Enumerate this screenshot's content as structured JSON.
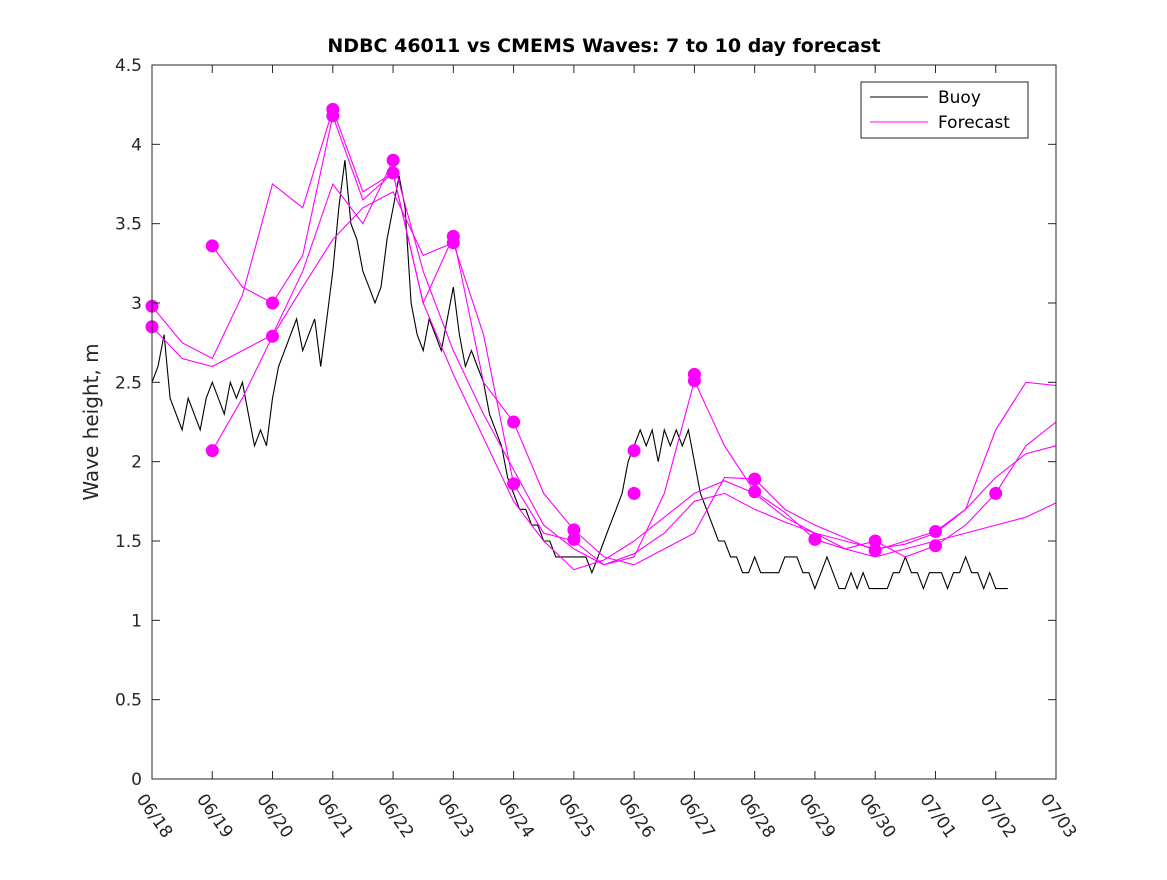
{
  "chart_data": {
    "type": "line",
    "title": "NDBC 46011 vs CMEMS Waves: 7 to 10 day forecast",
    "xlabel": "",
    "ylabel": "Wave height, m",
    "xlim": [
      0,
      15
    ],
    "ylim": [
      0,
      4.5
    ],
    "x_unit": "days since 06/18",
    "x_tick_values": [
      0,
      1,
      2,
      3,
      4,
      5,
      6,
      7,
      8,
      9,
      10,
      11,
      12,
      13,
      14,
      15
    ],
    "x_tick_labels": [
      "06/18",
      "06/19",
      "06/20",
      "06/21",
      "06/22",
      "06/23",
      "06/24",
      "06/25",
      "06/26",
      "06/27",
      "06/28",
      "06/29",
      "06/30",
      "07/01",
      "07/02",
      "07/03"
    ],
    "y_tick_values": [
      0,
      0.5,
      1,
      1.5,
      2,
      2.5,
      3,
      3.5,
      4,
      4.5
    ],
    "y_tick_labels": [
      "0",
      "0.5",
      "1",
      "1.5",
      "2",
      "2.5",
      "3",
      "3.5",
      "4",
      "4.5"
    ],
    "grid": false,
    "legend_position": "top-right",
    "legend": [
      {
        "label": "Buoy",
        "color": "#000000"
      },
      {
        "label": "Forecast",
        "color": "#ff00ff"
      }
    ],
    "colors": {
      "buoy": "#000000",
      "forecast": "#ff00ff"
    },
    "buoy": {
      "name": "Buoy",
      "x": [
        0,
        0.1,
        0.2,
        0.3,
        0.4,
        0.5,
        0.6,
        0.7,
        0.8,
        0.9,
        1.0,
        1.1,
        1.2,
        1.3,
        1.4,
        1.5,
        1.6,
        1.7,
        1.8,
        1.9,
        2.0,
        2.1,
        2.2,
        2.3,
        2.4,
        2.5,
        2.6,
        2.7,
        2.8,
        2.9,
        3.0,
        3.1,
        3.2,
        3.3,
        3.4,
        3.5,
        3.6,
        3.7,
        3.8,
        3.9,
        4.0,
        4.1,
        4.2,
        4.3,
        4.4,
        4.5,
        4.6,
        4.7,
        4.8,
        4.9,
        5.0,
        5.1,
        5.2,
        5.3,
        5.4,
        5.5,
        5.6,
        5.7,
        5.8,
        5.9,
        6.0,
        6.1,
        6.2,
        6.3,
        6.4,
        6.5,
        6.6,
        6.7,
        6.8,
        6.9,
        7.0,
        7.1,
        7.2,
        7.3,
        7.4,
        7.5,
        7.6,
        7.7,
        7.8,
        7.9,
        8.0,
        8.1,
        8.2,
        8.3,
        8.4,
        8.5,
        8.6,
        8.7,
        8.8,
        8.9,
        9.0,
        9.1,
        9.2,
        9.3,
        9.4,
        9.5,
        9.6,
        9.7,
        9.8,
        9.9,
        10.0,
        10.1,
        10.2,
        10.3,
        10.4,
        10.5,
        10.6,
        10.7,
        10.8,
        10.9,
        11.0,
        11.1,
        11.2,
        11.3,
        11.4,
        11.5,
        11.6,
        11.7,
        11.8,
        11.9,
        12.0,
        12.1,
        12.2,
        12.3,
        12.4,
        12.5,
        12.6,
        12.7,
        12.8,
        12.9,
        13.0,
        13.1,
        13.2,
        13.3,
        13.4,
        13.5,
        13.6,
        13.7,
        13.8,
        13.9,
        14.0,
        14.1,
        14.2
      ],
      "values": [
        2.5,
        2.6,
        2.8,
        2.4,
        2.3,
        2.2,
        2.4,
        2.3,
        2.2,
        2.4,
        2.5,
        2.4,
        2.3,
        2.5,
        2.4,
        2.5,
        2.3,
        2.1,
        2.2,
        2.1,
        2.4,
        2.6,
        2.7,
        2.8,
        2.9,
        2.7,
        2.8,
        2.9,
        2.6,
        2.9,
        3.2,
        3.6,
        3.9,
        3.5,
        3.4,
        3.2,
        3.1,
        3.0,
        3.1,
        3.4,
        3.6,
        3.8,
        3.6,
        3.0,
        2.8,
        2.7,
        2.9,
        2.8,
        2.7,
        2.9,
        3.1,
        2.8,
        2.6,
        2.7,
        2.6,
        2.5,
        2.3,
        2.2,
        2.1,
        1.9,
        1.8,
        1.7,
        1.7,
        1.6,
        1.6,
        1.5,
        1.5,
        1.4,
        1.4,
        1.4,
        1.4,
        1.4,
        1.4,
        1.3,
        1.4,
        1.5,
        1.6,
        1.7,
        1.8,
        2.0,
        2.1,
        2.2,
        2.1,
        2.2,
        2.0,
        2.2,
        2.1,
        2.2,
        2.1,
        2.2,
        2.0,
        1.8,
        1.7,
        1.6,
        1.5,
        1.5,
        1.4,
        1.4,
        1.3,
        1.3,
        1.4,
        1.3,
        1.3,
        1.3,
        1.3,
        1.4,
        1.4,
        1.4,
        1.3,
        1.3,
        1.2,
        1.3,
        1.4,
        1.3,
        1.2,
        1.2,
        1.3,
        1.2,
        1.3,
        1.2,
        1.2,
        1.2,
        1.2,
        1.3,
        1.3,
        1.4,
        1.3,
        1.3,
        1.2,
        1.3,
        1.3,
        1.3,
        1.2,
        1.3,
        1.3,
        1.4,
        1.3,
        1.3,
        1.2,
        1.3,
        1.2,
        1.2,
        1.2
      ]
    },
    "forecast_series": [
      {
        "name": "Forecast",
        "x": [
          0,
          0.5,
          1,
          1.5,
          2,
          2.5,
          3,
          3.5,
          4,
          4.5,
          5,
          5.5,
          6,
          6.5,
          7,
          7.5,
          8,
          8.5,
          9,
          9.5,
          10,
          10.5,
          11,
          11.5,
          12,
          12.5,
          13,
          13.5,
          14,
          14.5,
          15
        ],
        "values": [
          2.98,
          2.75,
          2.65,
          3.05,
          3.75,
          3.6,
          4.22,
          3.7,
          3.82,
          3.0,
          2.55,
          2.15,
          1.75,
          1.5,
          1.32,
          1.38,
          1.5,
          1.65,
          1.8,
          1.88,
          1.8,
          1.65,
          1.55,
          1.45,
          1.4,
          1.45,
          1.5,
          1.55,
          1.6,
          1.65,
          1.74
        ]
      },
      {
        "name": "Forecast",
        "x": [
          0,
          0.5,
          1,
          1.5,
          2,
          2.5,
          3,
          3.5,
          4,
          4.5,
          5,
          5.5,
          6,
          6.5,
          7,
          7.5,
          8,
          8.5,
          9,
          9.5,
          10,
          10.5,
          11,
          11.5,
          12,
          12.5,
          13,
          13.5,
          14,
          14.5,
          15
        ],
        "values": [
          2.85,
          2.65,
          2.6,
          2.7,
          2.8,
          3.2,
          3.75,
          3.5,
          3.9,
          3.2,
          2.7,
          2.3,
          1.95,
          1.6,
          1.45,
          1.35,
          1.42,
          1.55,
          1.75,
          1.8,
          1.7,
          1.62,
          1.55,
          1.5,
          1.45,
          1.48,
          1.55,
          1.7,
          1.9,
          2.05,
          2.1
        ]
      },
      {
        "name": "Forecast",
        "x": [
          1,
          1.5,
          2,
          2.5,
          3,
          3.5,
          4,
          4.5,
          5,
          5.5,
          6,
          6.5,
          7,
          7.5,
          8,
          8.5,
          9,
          9.5,
          10,
          10.5,
          11,
          11.5,
          12,
          12.5,
          13,
          13.5,
          14,
          14.5,
          15
        ],
        "values": [
          3.36,
          3.1,
          3.0,
          3.3,
          4.18,
          3.65,
          3.82,
          3.0,
          3.42,
          2.5,
          2.25,
          1.8,
          1.57,
          1.4,
          1.35,
          1.45,
          1.55,
          1.9,
          1.89,
          1.7,
          1.6,
          1.52,
          1.44,
          1.5,
          1.56,
          1.7,
          2.2,
          2.5,
          2.48
        ]
      },
      {
        "name": "Forecast",
        "x": [
          1,
          1.5,
          2,
          2.5,
          3,
          3.5,
          4,
          4.5,
          5,
          5.5,
          6,
          6.5,
          7,
          7.5,
          8,
          8.5,
          9,
          9.5,
          10,
          10.5,
          11,
          11.5,
          12,
          12.5,
          13,
          13.5,
          14,
          14.5,
          15
        ],
        "values": [
          2.07,
          2.4,
          2.79,
          3.1,
          3.4,
          3.6,
          3.7,
          3.3,
          3.38,
          2.8,
          1.86,
          1.55,
          1.5,
          1.35,
          1.4,
          1.8,
          2.51,
          2.1,
          1.81,
          1.68,
          1.51,
          1.45,
          1.5,
          1.4,
          1.47,
          1.6,
          1.8,
          2.1,
          2.25
        ]
      }
    ],
    "forecast_markers": {
      "x": [
        0,
        0,
        1,
        1,
        2,
        2,
        3,
        3,
        4,
        4,
        5,
        5,
        6,
        6,
        7,
        7,
        8,
        8,
        9,
        9,
        10,
        10,
        11,
        12,
        12,
        13,
        13,
        14
      ],
      "values": [
        2.98,
        2.85,
        3.36,
        2.07,
        3.0,
        2.79,
        4.22,
        4.18,
        3.9,
        3.82,
        3.42,
        3.38,
        2.25,
        1.86,
        1.57,
        1.51,
        2.07,
        1.8,
        2.55,
        2.51,
        1.89,
        1.81,
        1.51,
        1.5,
        1.44,
        1.56,
        1.47,
        1.8
      ]
    }
  }
}
